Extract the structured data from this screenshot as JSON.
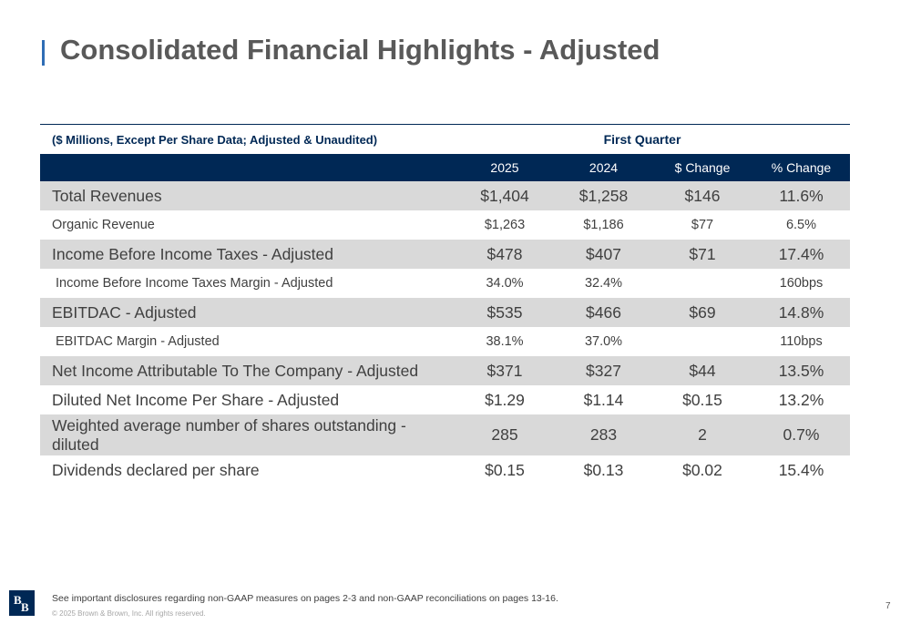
{
  "title": "Consolidated Financial Highlights - Adjusted",
  "table": {
    "caption": "($ Millions, Except Per Share Data; Adjusted & Unaudited)",
    "group_header": "First Quarter",
    "columns": [
      "2025",
      "2024",
      "$ Change",
      "% Change"
    ],
    "rows": [
      {
        "label": "Total Revenues",
        "values": [
          "$1,404",
          "$1,258",
          "$146",
          "11.6%"
        ]
      },
      {
        "label": "Organic Revenue",
        "values": [
          "$1,263",
          "$1,186",
          "$77",
          "6.5%"
        ]
      },
      {
        "label": "Income Before Income Taxes - Adjusted",
        "values": [
          "$478",
          "$407",
          "$71",
          "17.4%"
        ]
      },
      {
        "label": "Income Before Income Taxes Margin - Adjusted",
        "values": [
          "34.0%",
          "32.4%",
          "",
          "160bps"
        ]
      },
      {
        "label": "EBITDAC - Adjusted",
        "values": [
          "$535",
          "$466",
          "$69",
          "14.8%"
        ]
      },
      {
        "label": "EBITDAC Margin - Adjusted",
        "values": [
          "38.1%",
          "37.0%",
          "",
          "110bps"
        ]
      },
      {
        "label": "Net Income Attributable To The Company - Adjusted",
        "values": [
          "$371",
          "$327",
          "$44",
          "13.5%"
        ]
      },
      {
        "label": "Diluted Net Income Per Share - Adjusted",
        "values": [
          "$1.29",
          "$1.14",
          "$0.15",
          "13.2%"
        ]
      },
      {
        "label": "Weighted average number of shares outstanding - diluted",
        "values": [
          "285",
          "283",
          "2",
          "0.7%"
        ]
      },
      {
        "label": "Dividends declared per share",
        "values": [
          "$0.15",
          "$0.13",
          "$0.02",
          "15.4%"
        ]
      }
    ]
  },
  "footer": {
    "logo_letters": [
      "B",
      "B"
    ],
    "note": "See important disclosures regarding non-GAAP measures on pages 2-3 and non-GAAP reconciliations on pages 13-16.",
    "copyright": "© 2025 Brown & Brown, Inc. All rights reserved.",
    "page_number": "7"
  },
  "colors": {
    "navy": "#002855",
    "accent_blue": "#2f6db5",
    "row_shade": "#d9d9d9"
  }
}
